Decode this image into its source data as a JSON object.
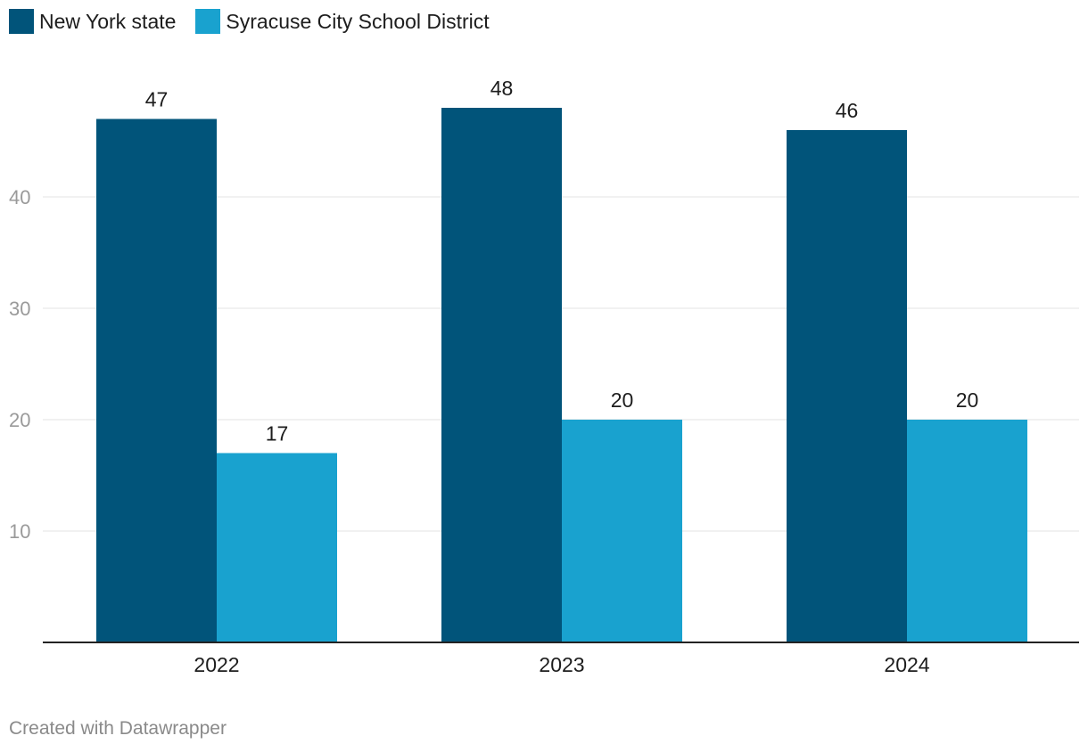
{
  "legend": [
    {
      "label": "New York state",
      "color": "#01547a"
    },
    {
      "label": "Syracuse City School District",
      "color": "#19a2cf"
    }
  ],
  "footer": {
    "credit": "Created with Datawrapper"
  },
  "chart_data": {
    "type": "bar",
    "title": "",
    "xlabel": "",
    "ylabel": "",
    "categories": [
      "2022",
      "2023",
      "2024"
    ],
    "series": [
      {
        "name": "New York state",
        "color": "#01547a",
        "values": [
          47,
          48,
          46
        ]
      },
      {
        "name": "Syracuse City School District",
        "color": "#19a2cf",
        "values": [
          17,
          20,
          20
        ]
      }
    ],
    "ylim": [
      0,
      50
    ],
    "yticks": [
      10,
      20,
      30,
      40
    ],
    "grid": true,
    "legend_position": "top-left"
  }
}
